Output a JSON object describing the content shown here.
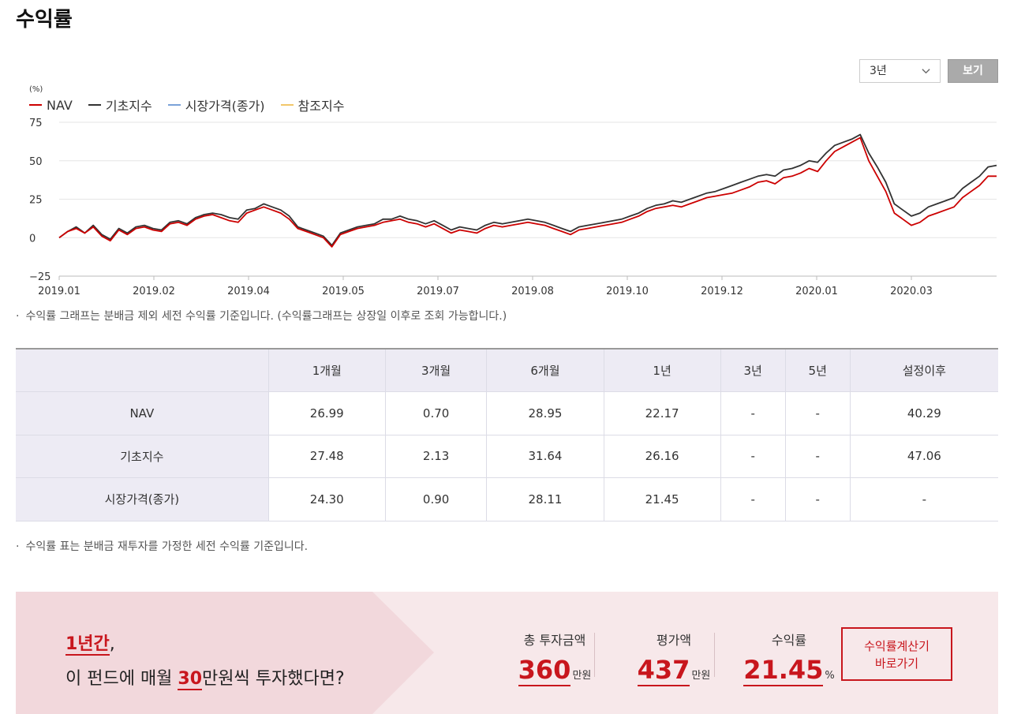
{
  "title": "수익률",
  "controls": {
    "period_value": "3년",
    "view_label": "보기"
  },
  "chart_data": {
    "type": "line",
    "unit_label": "(%)",
    "x_tick_labels": [
      "2019.01",
      "2019.02",
      "2019.04",
      "2019.05",
      "2019.07",
      "2019.08",
      "2019.10",
      "2019.12",
      "2020.01",
      "2020.03"
    ],
    "y_ticks": [
      75,
      50,
      25,
      0,
      -25
    ],
    "ylim": [
      -25,
      75
    ],
    "grid": true,
    "legend_position": "top-left",
    "series": [
      {
        "name": "NAV",
        "color": "#cc0000",
        "values": [
          0,
          4,
          6,
          3,
          7,
          1,
          -2,
          5,
          2,
          6,
          7,
          5,
          4,
          9,
          10,
          8,
          12,
          14,
          15,
          13,
          11,
          10,
          16,
          18,
          20,
          18,
          16,
          12,
          6,
          4,
          2,
          0,
          -6,
          2,
          4,
          6,
          7,
          8,
          10,
          11,
          12,
          10,
          9,
          7,
          9,
          6,
          3,
          5,
          4,
          3,
          6,
          8,
          7,
          8,
          9,
          10,
          9,
          8,
          6,
          4,
          2,
          5,
          6,
          7,
          8,
          9,
          10,
          12,
          14,
          17,
          19,
          20,
          21,
          20,
          22,
          24,
          26,
          27,
          28,
          29,
          31,
          33,
          36,
          37,
          35,
          39,
          40,
          42,
          45,
          43,
          50,
          56,
          59,
          62,
          65,
          50,
          40,
          30,
          16,
          12,
          8,
          10,
          14,
          16,
          18,
          20,
          26,
          30,
          34,
          40,
          40
        ]
      },
      {
        "name": "기초지수",
        "color": "#333333",
        "values": [
          0,
          4,
          7,
          3,
          8,
          2,
          -1,
          6,
          3,
          7,
          8,
          6,
          5,
          10,
          11,
          9,
          13,
          15,
          16,
          15,
          13,
          12,
          18,
          19,
          22,
          20,
          18,
          14,
          7,
          5,
          3,
          1,
          -5,
          3,
          5,
          7,
          8,
          9,
          12,
          12,
          14,
          12,
          11,
          9,
          11,
          8,
          5,
          7,
          6,
          5,
          8,
          10,
          9,
          10,
          11,
          12,
          11,
          10,
          8,
          6,
          4,
          7,
          8,
          9,
          10,
          11,
          12,
          14,
          16,
          19,
          21,
          22,
          24,
          23,
          25,
          27,
          29,
          30,
          32,
          34,
          36,
          38,
          40,
          41,
          40,
          44,
          45,
          47,
          50,
          49,
          55,
          60,
          62,
          64,
          67,
          55,
          46,
          36,
          22,
          18,
          14,
          16,
          20,
          22,
          24,
          26,
          32,
          36,
          40,
          46,
          47
        ]
      },
      {
        "name": "시장가격(종가)",
        "color": "#7aa2d8",
        "values": []
      },
      {
        "name": "참조지수",
        "color": "#f2c76a",
        "values": []
      }
    ]
  },
  "notes": {
    "chart_note": "수익률 그래프는 분배금 제외 세전 수익률 기준입니다. (수익률그래프는 상장일 이후로 조회 가능합니다.)",
    "table_note": "수익률 표는 분배금 재투자를 가정한 세전 수익률 기준입니다.",
    "bullet": "·"
  },
  "table": {
    "headers": [
      "",
      "1개월",
      "3개월",
      "6개월",
      "1년",
      "3년",
      "5년",
      "설정이후"
    ],
    "rows": [
      [
        "NAV",
        "26.99",
        "0.70",
        "28.95",
        "22.17",
        "-",
        "-",
        "40.29"
      ],
      [
        "기초지수",
        "27.48",
        "2.13",
        "31.64",
        "26.16",
        "-",
        "-",
        "47.06"
      ],
      [
        "시장가격(종가)",
        "24.30",
        "0.90",
        "28.11",
        "21.45",
        "-",
        "-",
        "-"
      ]
    ]
  },
  "banner": {
    "q1_highlight": "1년간",
    "q1_suffix": ",",
    "q2_prefix": "이 펀드에 매월 ",
    "q2_highlight": "30",
    "q2_suffix": "만원씩 투자했다면?",
    "stats": [
      {
        "label": "총 투자금액",
        "value": "360",
        "unit": "만원"
      },
      {
        "label": "평가액",
        "value": "437",
        "unit": "만원"
      },
      {
        "label": "수익률",
        "value": "21.45",
        "unit": "%"
      }
    ],
    "calc_button_line1": "수익률계산기",
    "calc_button_line2": "바로가기"
  }
}
